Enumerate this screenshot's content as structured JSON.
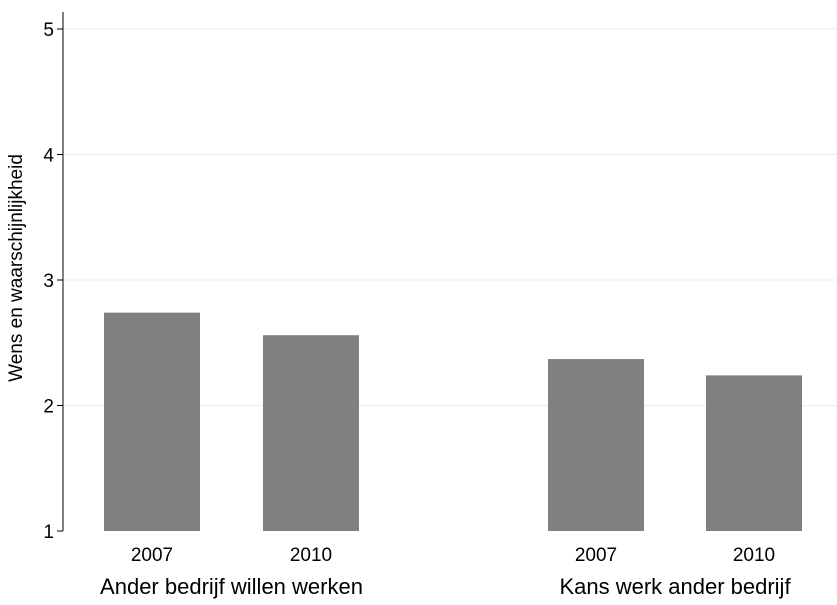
{
  "chart_data": {
    "type": "bar",
    "ylabel": "Wens en waarschijnlijkheid",
    "ylim": [
      1,
      5
    ],
    "yticks": [
      1,
      2,
      3,
      4,
      5
    ],
    "grid": true,
    "groups": [
      {
        "label": "Ander bedrijf willen werken",
        "bars": [
          {
            "category": "2007",
            "value": 2.74
          },
          {
            "category": "2010",
            "value": 2.56
          }
        ]
      },
      {
        "label": "Kans werk ander bedrijf",
        "bars": [
          {
            "category": "2007",
            "value": 2.37
          },
          {
            "category": "2010",
            "value": 2.24
          }
        ]
      }
    ],
    "colors": {
      "bar": "#808080",
      "grid": "#e4eeee",
      "axis": "#000000"
    }
  }
}
